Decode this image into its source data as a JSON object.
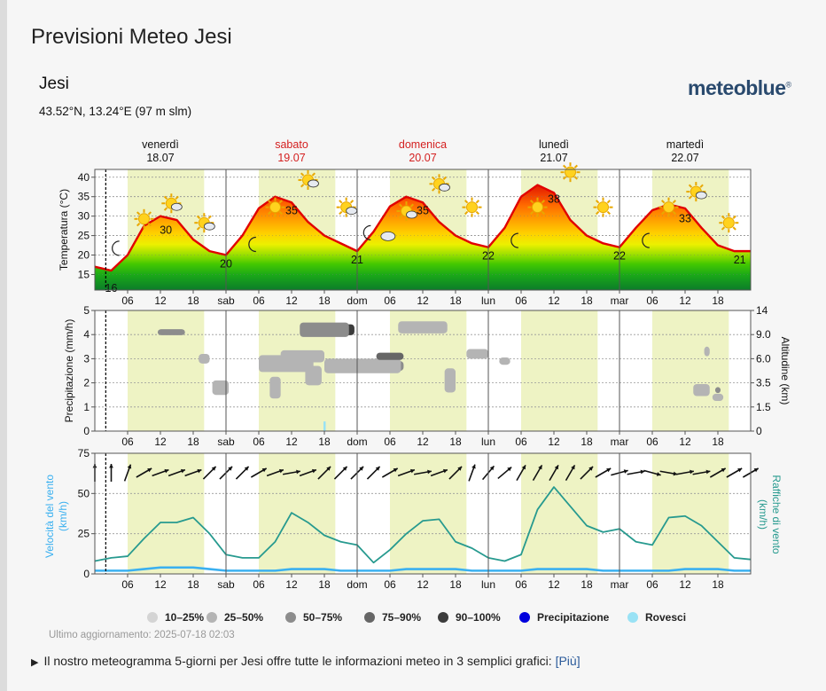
{
  "page": {
    "title": "Previsioni Meteo Jesi",
    "location": "Jesi",
    "coordinates": "43.52°N, 13.24°E (97 m slm)",
    "logo": "meteoblue",
    "logo_mark": "®",
    "updated": "Ultimo aggiornamento: 2025-07-18 02:03",
    "footer_text": "Il nostro meteogramma 5-giorni per Jesi offre tutte le informazioni meteo in 3 semplici grafici:",
    "footer_link": "[Più]"
  },
  "days": [
    {
      "name": "venerdì",
      "date": "18.07",
      "weekend": false
    },
    {
      "name": "sabato",
      "date": "19.07",
      "weekend": true
    },
    {
      "name": "domenica",
      "date": "20.07",
      "weekend": true
    },
    {
      "name": "lunedì",
      "date": "21.07",
      "weekend": false
    },
    {
      "name": "martedì",
      "date": "22.07",
      "weekend": false
    }
  ],
  "colors": {
    "weekend": "#d42020",
    "temp_line": "#e10000",
    "wind_line": "#3ab0f0",
    "gust_line": "#279a8f",
    "daylight": "#eef3c4",
    "precip": "#0000dd",
    "showers": "#99e2f5"
  },
  "x_ticks": [
    "06",
    "12",
    "18",
    "sab",
    "06",
    "12",
    "18",
    "dom",
    "06",
    "12",
    "18",
    "lun",
    "06",
    "12",
    "18",
    "mar",
    "06",
    "12",
    "18"
  ],
  "legend": [
    {
      "label": "10–25%",
      "color": "#d4d4d4"
    },
    {
      "label": "25–50%",
      "color": "#b4b4b4"
    },
    {
      "label": "50–75%",
      "color": "#8c8c8c"
    },
    {
      "label": "75–90%",
      "color": "#666666"
    },
    {
      "label": "90–100%",
      "color": "#3c3c3c"
    },
    {
      "label": "Precipitazione",
      "color": "#0000dd"
    },
    {
      "label": "Rovesci",
      "color": "#99e2f5"
    }
  ],
  "chart_data": [
    {
      "type": "area",
      "ylabel": "Temperatura (°C)",
      "ylim": [
        11,
        42
      ],
      "yticks": [
        15,
        20,
        25,
        30,
        35,
        40
      ],
      "x": [
        0,
        3,
        6,
        9,
        12,
        15,
        18,
        21,
        24,
        27,
        30,
        33,
        36,
        39,
        42,
        45,
        48,
        51,
        54,
        57,
        60,
        63,
        66,
        69,
        72,
        75,
        78,
        81,
        84,
        87,
        90,
        93,
        96,
        99,
        102,
        105,
        108,
        111,
        114,
        117,
        120
      ],
      "values": [
        17,
        16,
        20,
        27.5,
        30,
        29,
        24,
        21,
        20,
        25,
        32,
        35,
        33.5,
        28.5,
        25,
        23,
        21,
        26,
        32.5,
        35,
        33.5,
        28.5,
        25,
        23,
        22,
        27,
        35,
        38,
        36,
        29,
        25,
        23,
        22,
        27,
        31.5,
        33,
        32,
        27,
        22.5,
        21,
        21
      ],
      "daily_labels": [
        16,
        30,
        20,
        35,
        21,
        35,
        22,
        38,
        22,
        33,
        21
      ],
      "moon_icons": 5,
      "sun_icons": 15
    },
    {
      "type": "bar",
      "ylabel": "Precipitazione (mm/h)",
      "ylim": [
        0,
        5
      ],
      "yticks": [
        0,
        1,
        2,
        3,
        4,
        5
      ],
      "y2label": "Altitudine (km)",
      "y2ticks": [
        "0",
        "1.5",
        "3.5",
        "6.0",
        "9.0",
        "14"
      ],
      "precipitation_hours": [
        42
      ],
      "precipitation_values": [
        0.4
      ]
    },
    {
      "type": "line",
      "ylabel": "Velocità del vento (km/h)",
      "y2label": "Raffiche di vento (km/h)",
      "ylim": [
        0,
        75
      ],
      "yticks": [
        0,
        25,
        50,
        75
      ],
      "x": [
        0,
        3,
        6,
        9,
        12,
        15,
        18,
        21,
        24,
        27,
        30,
        33,
        36,
        39,
        42,
        45,
        48,
        51,
        54,
        57,
        60,
        63,
        66,
        69,
        72,
        75,
        78,
        81,
        84,
        87,
        90,
        93,
        96,
        99,
        102,
        105,
        108,
        111,
        114,
        117,
        120
      ],
      "series": [
        {
          "name": "Velocità del vento",
          "values": [
            2,
            2,
            2,
            3,
            4,
            4,
            4,
            3,
            2,
            2,
            2,
            2,
            3,
            3,
            3,
            2,
            2,
            2,
            2,
            3,
            3,
            3,
            3,
            2,
            2,
            2,
            2,
            3,
            3,
            3,
            3,
            2,
            2,
            2,
            2,
            2,
            3,
            3,
            3,
            2,
            2
          ]
        },
        {
          "name": "Raffiche di vento",
          "values": [
            8,
            10,
            11,
            22,
            32,
            32,
            35,
            25,
            12,
            10,
            10,
            20,
            38,
            32,
            24,
            20,
            18,
            7,
            15,
            25,
            33,
            34,
            20,
            16,
            10,
            8,
            12,
            40,
            54,
            42,
            30,
            26,
            28,
            20,
            18,
            35,
            36,
            30,
            20,
            10,
            9
          ]
        }
      ],
      "wind_direction_deg": [
        0,
        0,
        20,
        60,
        70,
        70,
        70,
        45,
        45,
        45,
        60,
        70,
        80,
        70,
        45,
        45,
        45,
        45,
        60,
        70,
        80,
        70,
        45,
        20,
        40,
        50,
        30,
        30,
        30,
        30,
        45,
        60,
        75,
        80,
        105,
        100,
        80,
        80,
        60,
        60,
        60
      ]
    }
  ]
}
